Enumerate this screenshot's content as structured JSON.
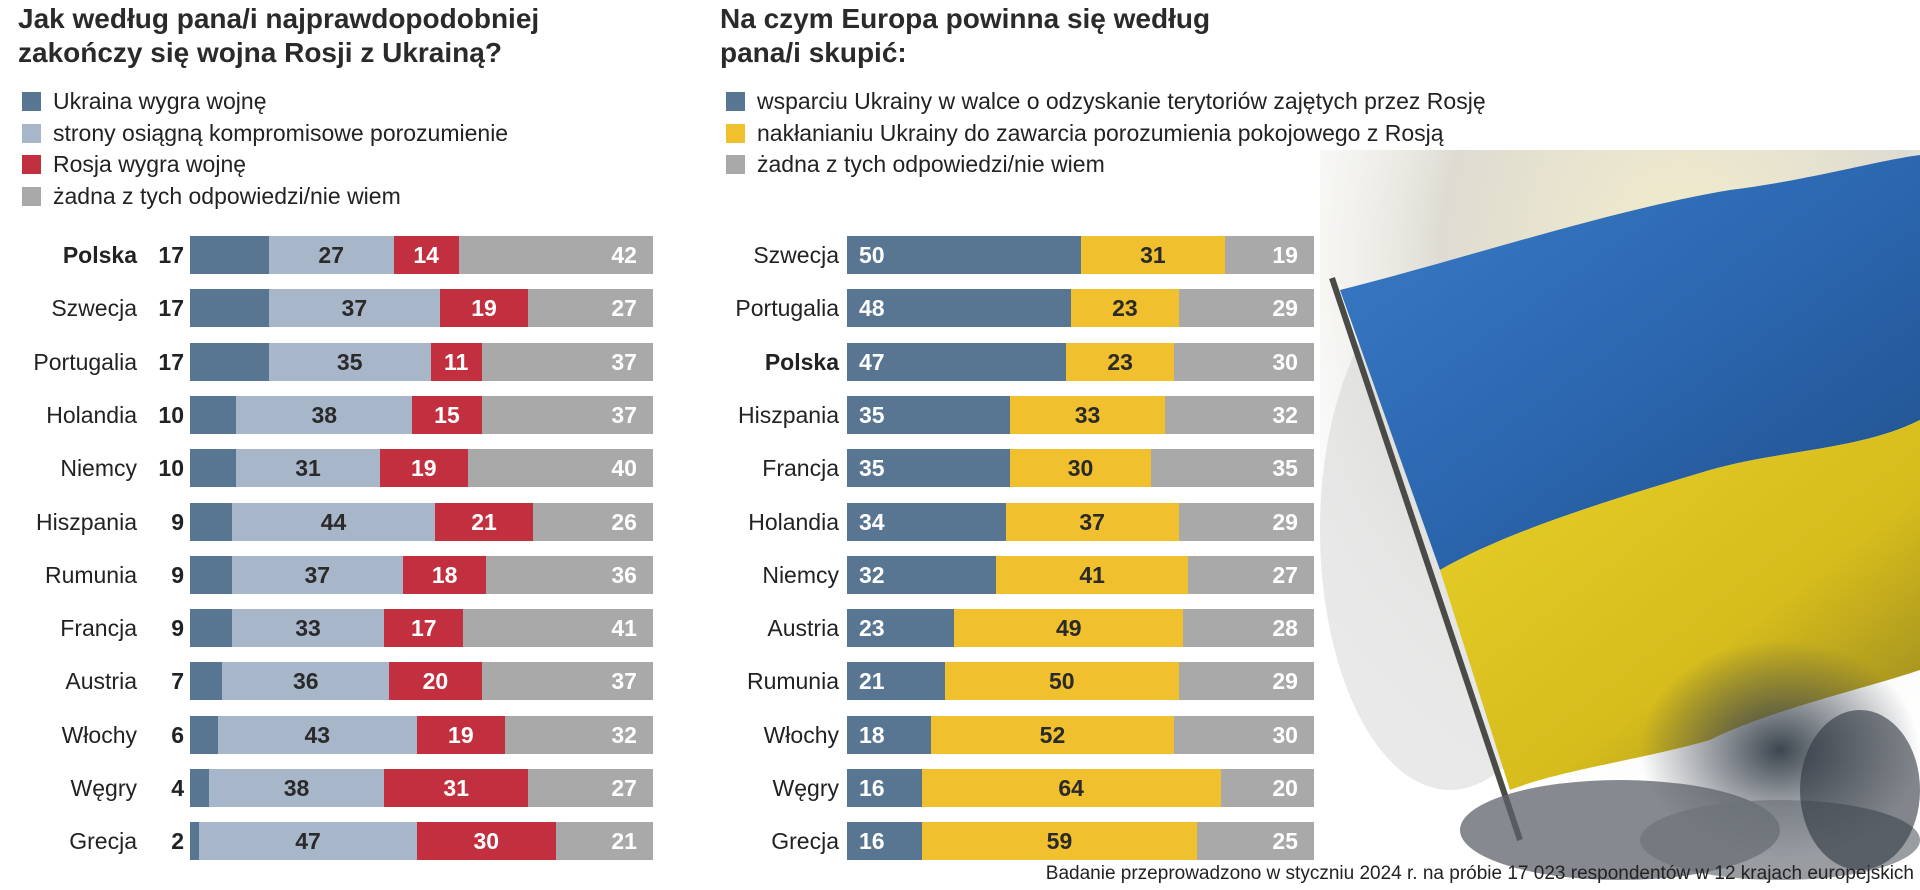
{
  "chart_data": [
    {
      "type": "bar",
      "stacked": true,
      "orientation": "horizontal",
      "title": "Jak według pana/i najprawdopodobniej zakończy się wojna Rosji z Ukrainą?",
      "categories": [
        "Polska",
        "Szwecja",
        "Portugalia",
        "Holandia",
        "Niemcy",
        "Hiszpania",
        "Rumunia",
        "Francja",
        "Austria",
        "Włochy",
        "Węgry",
        "Grecja"
      ],
      "highlight": "Polska",
      "series": [
        {
          "name": "Ukraina wygra wojnę",
          "color": "#587592",
          "values": [
            17,
            17,
            17,
            10,
            10,
            9,
            9,
            9,
            7,
            6,
            4,
            2
          ]
        },
        {
          "name": "strony osiągną kompromisowe porozumienie",
          "color": "#a8b6ca",
          "values": [
            27,
            37,
            35,
            38,
            31,
            44,
            37,
            33,
            36,
            43,
            38,
            47
          ]
        },
        {
          "name": "Rosja wygra wojnę",
          "color": "#c22f3e",
          "values": [
            14,
            19,
            11,
            15,
            19,
            21,
            18,
            17,
            20,
            19,
            31,
            30
          ]
        },
        {
          "name": "żadna z tych odpowiedzi/nie wiem",
          "color": "#a9a9a9",
          "values": [
            42,
            27,
            37,
            37,
            40,
            26,
            36,
            41,
            37,
            32,
            27,
            21
          ]
        }
      ],
      "xlim": [
        0,
        100
      ],
      "legend": "top-left",
      "grid": false
    },
    {
      "type": "bar",
      "stacked": true,
      "orientation": "horizontal",
      "title": "Na czym Europa powinna się według pana/i skupić:",
      "categories": [
        "Szwecja",
        "Portugalia",
        "Polska",
        "Hiszpania",
        "Francja",
        "Holandia",
        "Niemcy",
        "Austria",
        "Rumunia",
        "Włochy",
        "Węgry",
        "Grecja"
      ],
      "highlight": "Polska",
      "series": [
        {
          "name": "wsparciu Ukrainy w walce o odzyskanie terytoriów zajętych przez Rosję",
          "color": "#587592",
          "values": [
            50,
            48,
            47,
            35,
            35,
            34,
            32,
            23,
            21,
            18,
            16,
            16
          ]
        },
        {
          "name": "nakłanianiu Ukrainy do zawarcia porozumienia pokojowego z Rosją",
          "color": "#f0c02e",
          "values": [
            31,
            23,
            23,
            33,
            30,
            37,
            41,
            49,
            50,
            52,
            64,
            59
          ]
        },
        {
          "name": "żadna z tych odpowiedzi/nie wiem",
          "color": "#a9a9a9",
          "values": [
            19,
            29,
            30,
            32,
            35,
            29,
            27,
            28,
            29,
            30,
            20,
            25
          ]
        }
      ],
      "xlim": [
        0,
        100
      ],
      "legend": "top-left",
      "grid": false
    }
  ],
  "left": {
    "title_line1": "Jak według pana/i najprawdopodobniej",
    "title_line2": "zakończy się wojna Rosji z Ukrainą?"
  },
  "right": {
    "title_line1": "Na czym Europa powinna się według",
    "title_line2": "pana/i skupić:"
  },
  "footnote": "Badanie przeprowadzono w styczniu 2024 r. na próbie 17 023 respondentów w 12 krajach europejskich",
  "image": {
    "subject": "ukrainian-flag-with-smoke",
    "flag_colors": [
      "#2f6fbf",
      "#f2d21a"
    ]
  }
}
